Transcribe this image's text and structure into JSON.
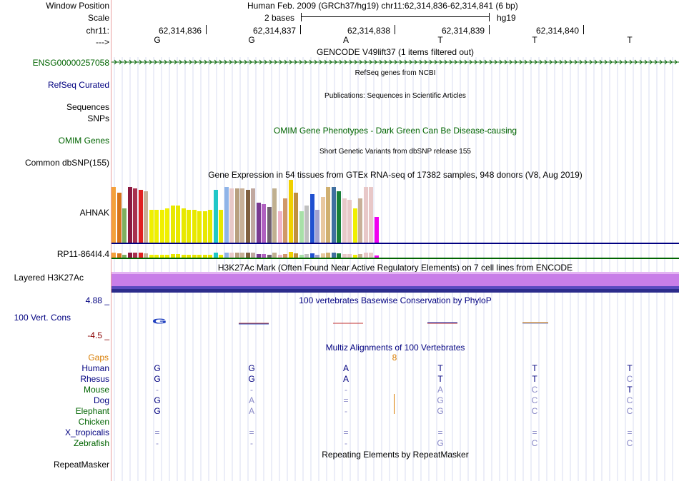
{
  "header": {
    "window_position_label": "Window Position",
    "window_position": "Human Feb. 2009 (GRCh37/hg19)   chr11:62,314,836-62,314,841 (6 bp)",
    "scale_label": "Scale",
    "scale_text": "2 bases",
    "scale_assembly": "hg19",
    "chrom_label": "chr11:",
    "strand_label": "--->",
    "coords": [
      "62,314,836",
      "62,314,837",
      "62,314,838",
      "62,314,839",
      "62,314,840"
    ],
    "bases": [
      "G",
      "G",
      "A",
      "T",
      "T",
      "T"
    ]
  },
  "tracks": {
    "gencode_title": "GENCODE V49lift37 (1 items filtered out)",
    "gencode_item": "ENSG00000257058",
    "refseq_title": "RefSeq genes from NCBI",
    "refseq_label": "RefSeq Curated",
    "pubs_title": "Publications: Sequences in Scientific Articles",
    "sequences_label": "Sequences",
    "snps_label": "SNPs",
    "omim_title": "OMIM Gene Phenotypes - Dark Green Can Be Disease-causing",
    "omim_label": "OMIM Genes",
    "dbsnp_title": "Short Genetic Variants from dbSNP release 155",
    "dbsnp_label": "Common dbSNP(155)",
    "gtex_title": "Gene Expression in 54 tissues from GTEx RNA-seq of 17382 samples, 948 donors (V8, Aug 2019)",
    "gtex_gene1": "AHNAK",
    "gtex_gene2": "RP11-864I4.4",
    "h3k27_title": "H3K27Ac Mark (Often Found Near Active Regulatory Elements) on 7 cell lines from ENCODE",
    "h3k27_label": "Layered H3K27Ac",
    "cons_title": "100 vertebrates Basewise Conservation by PhyloP",
    "cons_label": "100 Vert. Cons",
    "cons_max": "4.88 _",
    "cons_min": "-4.5 _",
    "multiz_title": "Multiz Alignments of 100 Vertebrates",
    "gaps_label": "Gaps",
    "gap_count": "8",
    "repeat_title": "Repeating Elements by RepeatMasker",
    "repeat_label": "RepeatMasker"
  },
  "species": [
    {
      "name": "Human",
      "color": "#000080",
      "bases": [
        "G",
        "G",
        "A",
        "T",
        "T",
        "T"
      ],
      "dim": [
        false,
        false,
        false,
        false,
        false,
        false
      ]
    },
    {
      "name": "Rhesus",
      "color": "#000080",
      "bases": [
        "G",
        "G",
        "A",
        "T",
        "T",
        "C"
      ],
      "dim": [
        false,
        false,
        false,
        false,
        false,
        true
      ]
    },
    {
      "name": "Mouse",
      "color": "#006400",
      "bases": [
        "-",
        "-",
        "-",
        "A",
        "C",
        "T"
      ],
      "dim": [
        true,
        true,
        true,
        true,
        true,
        false
      ]
    },
    {
      "name": "Dog",
      "color": "#000080",
      "bases": [
        "G",
        "A",
        "=",
        "G",
        "C",
        "C"
      ],
      "dim": [
        false,
        true,
        true,
        true,
        true,
        true
      ]
    },
    {
      "name": "Elephant",
      "color": "#006400",
      "bases": [
        "G",
        "A",
        "-",
        "G",
        "C",
        "C"
      ],
      "dim": [
        false,
        true,
        true,
        true,
        true,
        true
      ]
    },
    {
      "name": "Chicken",
      "color": "#006400",
      "bases": [
        "",
        "",
        "",
        "",
        "",
        ""
      ],
      "dim": [
        true,
        true,
        true,
        true,
        true,
        true
      ]
    },
    {
      "name": "X_tropicalis",
      "color": "#000080",
      "bases": [
        "=",
        "=",
        "=",
        "=",
        "=",
        "="
      ],
      "dim": [
        true,
        true,
        true,
        true,
        true,
        true
      ]
    },
    {
      "name": "Zebrafish",
      "color": "#006400",
      "bases": [
        "-",
        "-",
        "-",
        "G",
        "C",
        "C"
      ],
      "dim": [
        true,
        true,
        true,
        true,
        true,
        true
      ]
    }
  ],
  "gtex_values": [
    78,
    70,
    48,
    78,
    76,
    74,
    72,
    46,
    46,
    46,
    48,
    52,
    52,
    48,
    46,
    46,
    44,
    44,
    46,
    74,
    46,
    78,
    76,
    76,
    76,
    74,
    76,
    56,
    54,
    50,
    76,
    44,
    62,
    88,
    70,
    44,
    52,
    68,
    46,
    64,
    78,
    78,
    72,
    62,
    60,
    48,
    62,
    78,
    78,
    36
  ],
  "gtex_colors": [
    "#f4a13b",
    "#d8741a",
    "#7faf60",
    "#8b1a40",
    "#a8304e",
    "#e02020",
    "#c8b098",
    "#f0f000",
    "#f0f000",
    "#f0f000",
    "#f0f000",
    "#e8e800",
    "#e8e800",
    "#e8e800",
    "#e8e800",
    "#e8e800",
    "#e8e800",
    "#e8e800",
    "#e8e800",
    "#20c8c8",
    "#e8e800",
    "#8fb4e8",
    "#e8c8c8",
    "#b8a080",
    "#c8b098",
    "#806040",
    "#c0a8a0",
    "#7a3a92",
    "#b060c0",
    "#706070",
    "#c0b090",
    "#f0b4c8",
    "#d09868",
    "#f0d000",
    "#c09040",
    "#a8e0a8",
    "#c0c0c0",
    "#2050d0",
    "#a0a0d0",
    "#e8c8a0",
    "#d0b070",
    "#4070a0",
    "#188038",
    "#e8c8c8",
    "#e8c8c8",
    "#f0f000",
    "#c8b098",
    "#e8c8c8",
    "#e8c8c8",
    "#f000f0"
  ],
  "colors": {
    "label_navy": "#000080",
    "label_green": "#006400",
    "label_orange": "#d87c00",
    "h3k27_violet": "#c87ee8",
    "h3k27_dark": "#3c2c9c"
  }
}
